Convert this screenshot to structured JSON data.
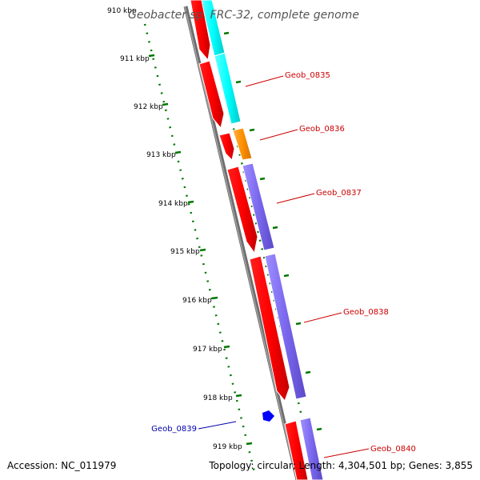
{
  "title": "Geobacter sp. FRC-32, complete genome",
  "accession": "Accession: NC_011979",
  "topology": "Topology: circular; Length: 4,304,501 bp; Genes: 3,855",
  "kbp_labels": [
    "910 kbp",
    "911 kbp",
    "912 kbp",
    "913 kbp",
    "914 kbp",
    "915 kbp",
    "916 kbp",
    "917 kbp",
    "918 kbp",
    "919 kbp"
  ],
  "genes": [
    {
      "id": "geob-0835",
      "label": "Geob_0835",
      "color": "#cc0000"
    },
    {
      "id": "geob-0836",
      "label": "Geob_0836",
      "color": "#cc0000"
    },
    {
      "id": "geob-0837",
      "label": "Geob_0837",
      "color": "#cc0000"
    },
    {
      "id": "geob-0838",
      "label": "Geob_0838",
      "color": "#cc0000"
    },
    {
      "id": "geob-0839",
      "label": "Geob_0839",
      "color": "#0000aa"
    },
    {
      "id": "geob-0840",
      "label": "Geob_0840",
      "color": "#cc0000"
    }
  ],
  "colors": {
    "cds": "#ff0000",
    "cog_cyan": "#00ffff",
    "cog_orange": "#ff8c00",
    "cog_purple": "#7b68ee",
    "backbone": "#808080",
    "ticks": "#007700",
    "blue_feature": "#0000ff"
  }
}
